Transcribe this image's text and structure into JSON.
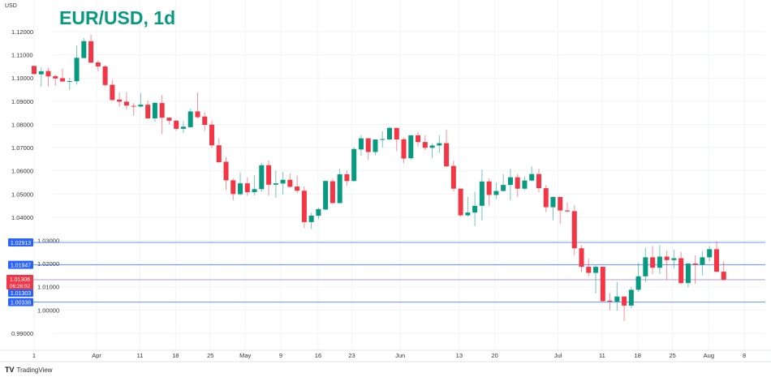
{
  "chart_data": {
    "type": "candlestick",
    "title": "EUR/USD, 1d",
    "currency": "USD",
    "ylim": [
      0.985,
      1.1235
    ],
    "y_ticks": [
      "1.12000",
      "1.11000",
      "1.10000",
      "1.09000",
      "1.08000",
      "1.07000",
      "1.06000",
      "1.05000",
      "1.04000",
      "1.03000",
      "1.02000",
      "1.01000",
      "1.00000",
      "0.99000"
    ],
    "x_ticks": [
      "1",
      "Apr",
      "11",
      "18",
      "25",
      "May",
      "9",
      "16",
      "23",
      "Jun",
      "13",
      "20",
      "Jul",
      "11",
      "18",
      "25",
      "Aug",
      "8"
    ],
    "grid": true,
    "colors": {
      "up": "#089981",
      "down": "#f23645"
    },
    "candles_ohlc": [
      [
        1.1052,
        1.1053,
        1.1015,
        1.1017
      ],
      [
        1.1016,
        1.1046,
        1.0963,
        1.1029
      ],
      [
        1.103,
        1.1044,
        1.0965,
        1.1007
      ],
      [
        1.1008,
        1.1014,
        1.0967,
        1.0998
      ],
      [
        1.0999,
        1.1041,
        1.0983,
        1.0985
      ],
      [
        1.0985,
        1.1001,
        1.0948,
        1.0987
      ],
      [
        1.0986,
        1.114,
        1.0971,
        1.1087
      ],
      [
        1.1086,
        1.1172,
        1.1084,
        1.1159
      ],
      [
        1.1159,
        1.1186,
        1.1064,
        1.1066
      ],
      [
        1.1067,
        1.1076,
        1.1029,
        1.105
      ],
      [
        1.105,
        1.1056,
        1.0963,
        1.097
      ],
      [
        1.0971,
        1.0991,
        1.0901,
        1.0905
      ],
      [
        1.0907,
        1.0938,
        1.0877,
        1.0898
      ],
      [
        1.0898,
        1.094,
        1.0863,
        1.0881
      ],
      [
        1.088,
        1.0892,
        1.0837,
        1.0877
      ],
      [
        1.0877,
        1.0935,
        1.0874,
        1.0885
      ],
      [
        1.0885,
        1.0903,
        1.0823,
        1.0826
      ],
      [
        1.0826,
        1.0895,
        1.0812,
        1.0893
      ],
      [
        1.0892,
        1.0926,
        1.0758,
        1.0829
      ],
      [
        1.0829,
        1.0831,
        1.08,
        1.0816
      ],
      [
        1.0816,
        1.0821,
        1.0772,
        1.0781
      ],
      [
        1.0781,
        1.0814,
        1.0763,
        1.079
      ],
      [
        1.0788,
        1.0867,
        1.0786,
        1.0856
      ],
      [
        1.0856,
        1.0937,
        1.0826,
        1.0831
      ],
      [
        1.0834,
        1.0852,
        1.0771,
        1.0798
      ],
      [
        1.0799,
        1.0817,
        1.0698,
        1.071
      ],
      [
        1.071,
        1.074,
        1.0635,
        1.0637
      ],
      [
        1.0639,
        1.0659,
        1.0518,
        1.0559
      ],
      [
        1.0559,
        1.0567,
        1.0473,
        1.05
      ],
      [
        1.0499,
        1.0594,
        1.0494,
        1.0546
      ],
      [
        1.0546,
        1.0571,
        1.0492,
        1.0508
      ],
      [
        1.0508,
        1.058,
        1.0494,
        1.0521
      ],
      [
        1.0521,
        1.0634,
        1.0509,
        1.0624
      ],
      [
        1.0624,
        1.0645,
        1.0494,
        1.054
      ],
      [
        1.054,
        1.0601,
        1.0485,
        1.0546
      ],
      [
        1.0545,
        1.0595,
        1.0498,
        1.0561
      ],
      [
        1.0561,
        1.0588,
        1.0527,
        1.0531
      ],
      [
        1.0532,
        1.058,
        1.0504,
        1.0514
      ],
      [
        1.0514,
        1.0532,
        1.0353,
        1.0379
      ],
      [
        1.0379,
        1.0419,
        1.0349,
        1.0407
      ],
      [
        1.0406,
        1.0441,
        1.0392,
        1.0435
      ],
      [
        1.0433,
        1.0559,
        1.0429,
        1.0556
      ],
      [
        1.0555,
        1.0565,
        1.0459,
        1.0461
      ],
      [
        1.0461,
        1.0609,
        1.0459,
        1.0585
      ],
      [
        1.0585,
        1.0602,
        1.0535,
        1.0556
      ],
      [
        1.0556,
        1.0702,
        1.0554,
        1.0694
      ],
      [
        1.0692,
        1.0754,
        1.0665,
        1.074
      ],
      [
        1.074,
        1.074,
        1.0647,
        1.0681
      ],
      [
        1.0681,
        1.0735,
        1.0667,
        1.0735
      ],
      [
        1.0734,
        1.0771,
        1.07,
        1.0737
      ],
      [
        1.0735,
        1.0791,
        1.0732,
        1.0785
      ],
      [
        1.0785,
        1.0785,
        1.0685,
        1.0735
      ],
      [
        1.0736,
        1.0743,
        1.0632,
        1.0653
      ],
      [
        1.0654,
        1.0753,
        1.0648,
        1.0753
      ],
      [
        1.0753,
        1.0768,
        1.0706,
        1.0724
      ],
      [
        1.0724,
        1.0753,
        1.0689,
        1.0699
      ],
      [
        1.0699,
        1.0718,
        1.0656,
        1.0709
      ],
      [
        1.0709,
        1.0753,
        1.0677,
        1.0719
      ],
      [
        1.0719,
        1.0777,
        1.0616,
        1.0619
      ],
      [
        1.0621,
        1.0644,
        1.0511,
        1.0523
      ],
      [
        1.0523,
        1.0523,
        1.0402,
        1.0408
      ],
      [
        1.0408,
        1.0487,
        1.0402,
        1.042
      ],
      [
        1.042,
        1.051,
        1.0361,
        1.0449
      ],
      [
        1.0449,
        1.0605,
        1.0385,
        1.0554
      ],
      [
        1.0554,
        1.0566,
        1.0449,
        1.0496
      ],
      [
        1.0496,
        1.0549,
        1.0478,
        1.0513
      ],
      [
        1.0513,
        1.0586,
        1.0511,
        1.0539
      ],
      [
        1.0539,
        1.0609,
        1.0473,
        1.0572
      ],
      [
        1.0572,
        1.0586,
        1.0487,
        1.0523
      ],
      [
        1.0523,
        1.0574,
        1.0516,
        1.0558
      ],
      [
        1.0558,
        1.0619,
        1.0554,
        1.0586
      ],
      [
        1.0586,
        1.0609,
        1.0508,
        1.0525
      ],
      [
        1.0525,
        1.0539,
        1.0422,
        1.0443
      ],
      [
        1.0443,
        1.049,
        1.0387,
        1.0487
      ],
      [
        1.0487,
        1.0487,
        1.037,
        1.0429
      ],
      [
        1.0429,
        1.0464,
        1.042,
        1.0425
      ],
      [
        1.0426,
        1.0453,
        1.0235,
        1.0266
      ],
      [
        1.0266,
        1.028,
        1.0163,
        1.0186
      ],
      [
        1.0186,
        1.0221,
        1.0145,
        1.016
      ],
      [
        1.016,
        1.0192,
        1.0071,
        1.0186
      ],
      [
        1.0186,
        1.0186,
        1.0036,
        1.0038
      ],
      [
        1.004,
        1.0073,
        0.9999,
        1.0036
      ],
      [
        1.0036,
        1.0121,
        0.9997,
        1.0058
      ],
      [
        1.0058,
        1.0058,
        0.9952,
        1.0019
      ],
      [
        1.0019,
        1.0098,
        1.0008,
        1.0087
      ],
      [
        1.0087,
        1.0203,
        1.0078,
        1.0145
      ],
      [
        1.0145,
        1.0268,
        1.0119,
        1.0227
      ],
      [
        1.0227,
        1.0276,
        1.0154,
        1.0182
      ],
      [
        1.0182,
        1.028,
        1.0154,
        1.023
      ],
      [
        1.023,
        1.0256,
        1.013,
        1.0215
      ],
      [
        1.0215,
        1.0259,
        1.0179,
        1.0223
      ],
      [
        1.0223,
        1.025,
        1.011,
        1.0116
      ],
      [
        1.0116,
        1.02,
        1.0098,
        1.02
      ],
      [
        1.02,
        1.0235,
        1.0113,
        1.0195
      ],
      [
        1.0195,
        1.0254,
        1.0149,
        1.0227
      ],
      [
        1.0227,
        1.0276,
        1.0209,
        1.0262
      ],
      [
        1.0262,
        1.0296,
        1.0163,
        1.0165
      ],
      [
        1.0165,
        1.0209,
        1.0127,
        1.013
      ]
    ],
    "price_lines": [
      {
        "label": "1.02913",
        "value": 1.02913,
        "color": "#2962ff"
      },
      {
        "label": "1.01947",
        "value": 1.01947,
        "color": "#2962ff"
      },
      {
        "label": "1.01303",
        "value": 1.01303,
        "color": "#9575cd"
      },
      {
        "label": "1.00338",
        "value": 1.00338,
        "color": "#2962ff"
      }
    ],
    "last_price": {
      "label": "1.01306",
      "countdown": "06:26:02",
      "color": "#f23645"
    }
  },
  "footer": {
    "brand": "TradingView"
  }
}
